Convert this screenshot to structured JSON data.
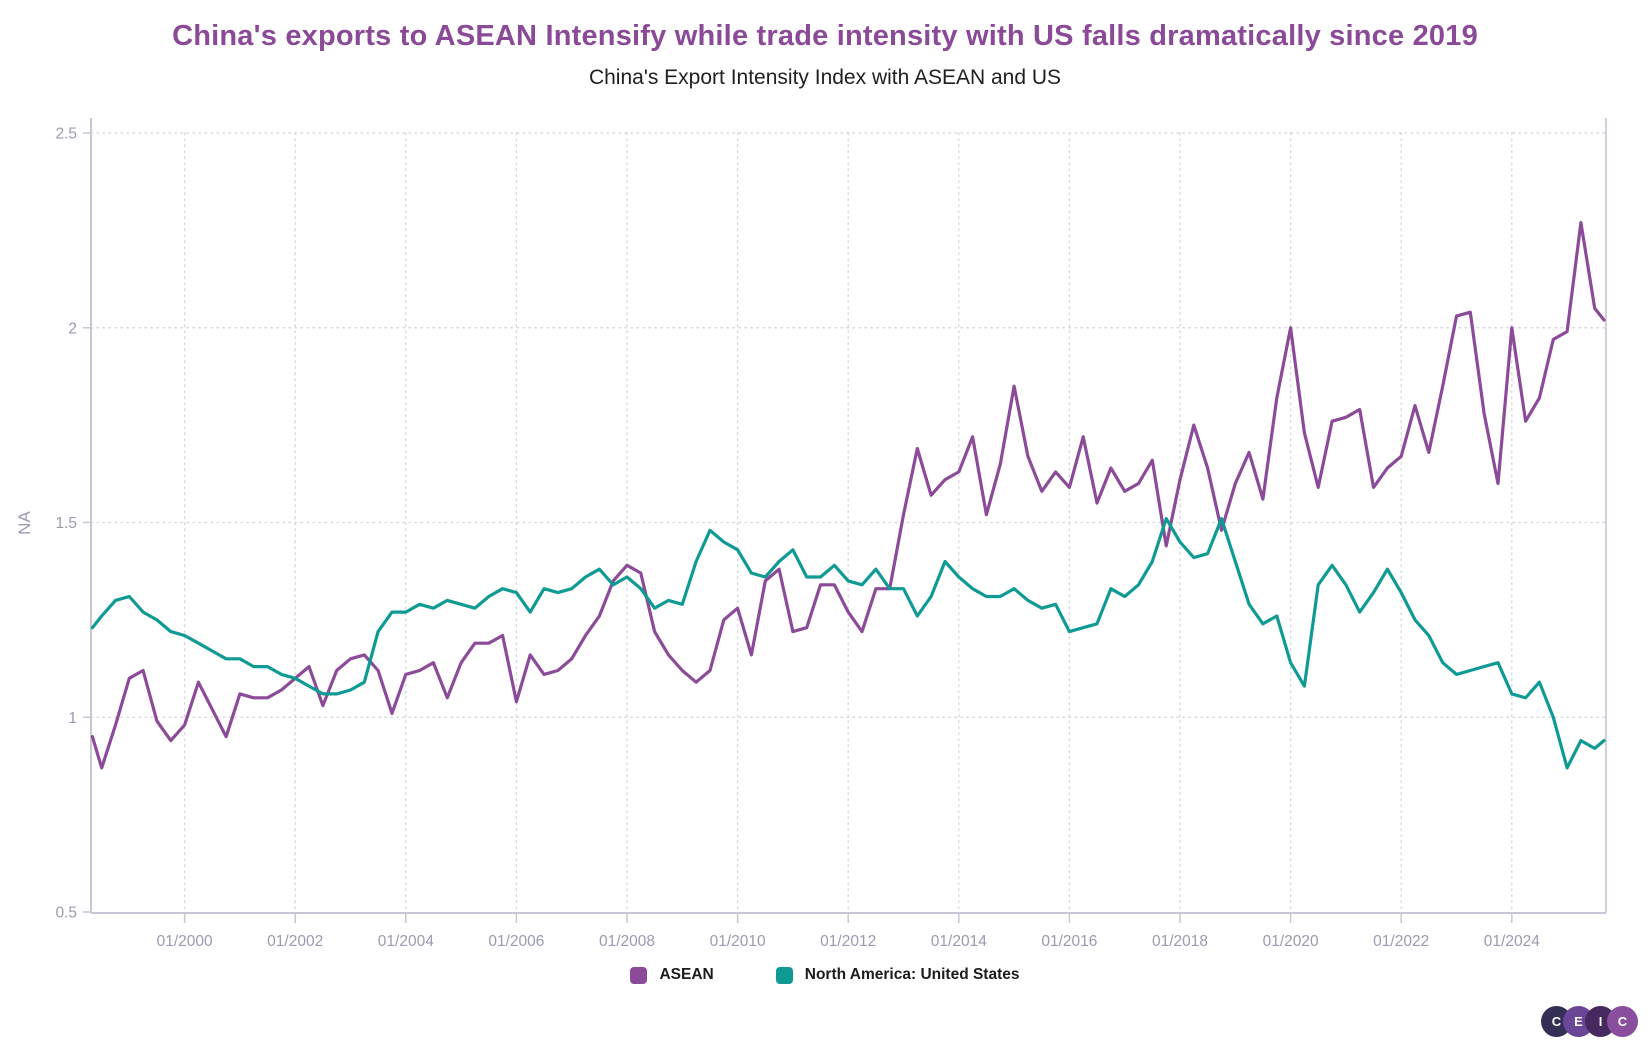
{
  "title": {
    "text": "China's exports to ASEAN Intensify while trade intensity with US falls dramatically since 2019",
    "color": "#8B4A97"
  },
  "subtitle": {
    "text": "China's Export Intensity Index with ASEAN and US"
  },
  "legend": {
    "items": [
      {
        "label": "ASEAN",
        "color": "#8C4B98"
      },
      {
        "label": "North America: United States",
        "color": "#0F9A94"
      }
    ]
  },
  "logo": {
    "letters": [
      "C",
      "E",
      "I",
      "C"
    ],
    "circle_colors": [
      "#343055",
      "#6B4596",
      "#46295F",
      "#8A4E9F"
    ]
  },
  "chart_data": {
    "type": "line",
    "title": "China's Export Intensity Index with ASEAN and US",
    "xlabel": "",
    "ylabel": "NA",
    "ylim": [
      0.5,
      2.5
    ],
    "grid": true,
    "legend_position": "bottom",
    "yticks": [
      "0.5",
      "1",
      "1.5",
      "2",
      "2.5"
    ],
    "xticks": [
      "01/2000",
      "01/2002",
      "01/2004",
      "01/2006",
      "01/2008",
      "01/2010",
      "01/2012",
      "01/2014",
      "01/2016",
      "01/2018",
      "01/2020",
      "01/2022",
      "01/2024"
    ],
    "x": [
      "1998-05",
      "1998-07",
      "1998-10",
      "1999-01",
      "1999-04",
      "1999-07",
      "1999-10",
      "2000-01",
      "2000-04",
      "2000-07",
      "2000-10",
      "2001-01",
      "2001-04",
      "2001-07",
      "2001-10",
      "2002-01",
      "2002-04",
      "2002-07",
      "2002-10",
      "2003-01",
      "2003-04",
      "2003-07",
      "2003-10",
      "2004-01",
      "2004-04",
      "2004-07",
      "2004-10",
      "2005-01",
      "2005-04",
      "2005-07",
      "2005-10",
      "2006-01",
      "2006-04",
      "2006-07",
      "2006-10",
      "2007-01",
      "2007-04",
      "2007-07",
      "2007-10",
      "2008-01",
      "2008-04",
      "2008-07",
      "2008-10",
      "2009-01",
      "2009-04",
      "2009-07",
      "2009-10",
      "2010-01",
      "2010-04",
      "2010-07",
      "2010-10",
      "2011-01",
      "2011-04",
      "2011-07",
      "2011-10",
      "2012-01",
      "2012-04",
      "2012-07",
      "2012-10",
      "2013-01",
      "2013-04",
      "2013-07",
      "2013-10",
      "2014-01",
      "2014-04",
      "2014-07",
      "2014-10",
      "2015-01",
      "2015-04",
      "2015-07",
      "2015-10",
      "2016-01",
      "2016-04",
      "2016-07",
      "2016-10",
      "2017-01",
      "2017-04",
      "2017-07",
      "2017-10",
      "2018-01",
      "2018-04",
      "2018-07",
      "2018-10",
      "2019-01",
      "2019-04",
      "2019-07",
      "2019-10",
      "2020-01",
      "2020-04",
      "2020-07",
      "2020-10",
      "2021-01",
      "2021-04",
      "2021-07",
      "2021-10",
      "2022-01",
      "2022-04",
      "2022-07",
      "2022-10",
      "2023-01",
      "2023-04",
      "2023-07",
      "2023-10",
      "2024-01",
      "2024-04",
      "2024-07",
      "2024-10",
      "2025-01",
      "2025-04",
      "2025-07",
      "2025-09"
    ],
    "series": [
      {
        "name": "ASEAN",
        "color": "#8C4B98",
        "values": [
          0.95,
          0.87,
          0.98,
          1.1,
          1.12,
          0.99,
          0.94,
          0.98,
          1.09,
          1.02,
          0.95,
          1.06,
          1.05,
          1.05,
          1.07,
          1.1,
          1.13,
          1.03,
          1.12,
          1.15,
          1.16,
          1.12,
          1.01,
          1.11,
          1.12,
          1.14,
          1.05,
          1.14,
          1.19,
          1.19,
          1.21,
          1.04,
          1.16,
          1.11,
          1.12,
          1.15,
          1.21,
          1.26,
          1.35,
          1.39,
          1.37,
          1.22,
          1.16,
          1.12,
          1.09,
          1.12,
          1.25,
          1.28,
          1.16,
          1.35,
          1.38,
          1.22,
          1.23,
          1.34,
          1.34,
          1.27,
          1.22,
          1.33,
          1.33,
          1.52,
          1.69,
          1.57,
          1.61,
          1.63,
          1.72,
          1.52,
          1.65,
          1.85,
          1.67,
          1.58,
          1.63,
          1.59,
          1.72,
          1.55,
          1.64,
          1.58,
          1.6,
          1.66,
          1.44,
          1.61,
          1.75,
          1.64,
          1.48,
          1.6,
          1.68,
          1.56,
          1.82,
          2.0,
          1.73,
          1.59,
          1.76,
          1.77,
          1.79,
          1.59,
          1.64,
          1.67,
          1.8,
          1.68,
          1.85,
          2.03,
          2.04,
          1.78,
          1.6,
          2.0,
          1.76,
          1.82,
          1.97,
          1.99,
          2.27,
          2.05,
          2.02
        ]
      },
      {
        "name": "North America: United States",
        "color": "#0F9A94",
        "values": [
          1.23,
          1.26,
          1.3,
          1.31,
          1.27,
          1.25,
          1.22,
          1.21,
          1.19,
          1.17,
          1.15,
          1.15,
          1.13,
          1.13,
          1.11,
          1.1,
          1.08,
          1.06,
          1.06,
          1.07,
          1.09,
          1.22,
          1.27,
          1.27,
          1.29,
          1.28,
          1.3,
          1.29,
          1.28,
          1.31,
          1.33,
          1.32,
          1.27,
          1.33,
          1.32,
          1.33,
          1.36,
          1.38,
          1.34,
          1.36,
          1.33,
          1.28,
          1.3,
          1.29,
          1.4,
          1.48,
          1.45,
          1.43,
          1.37,
          1.36,
          1.4,
          1.43,
          1.36,
          1.36,
          1.39,
          1.35,
          1.34,
          1.38,
          1.33,
          1.33,
          1.26,
          1.31,
          1.4,
          1.36,
          1.33,
          1.31,
          1.31,
          1.33,
          1.3,
          1.28,
          1.29,
          1.22,
          1.23,
          1.24,
          1.33,
          1.31,
          1.34,
          1.4,
          1.51,
          1.45,
          1.41,
          1.42,
          1.51,
          1.4,
          1.29,
          1.24,
          1.26,
          1.14,
          1.08,
          1.34,
          1.39,
          1.34,
          1.27,
          1.32,
          1.38,
          1.32,
          1.25,
          1.21,
          1.14,
          1.11,
          1.12,
          1.13,
          1.14,
          1.06,
          1.05,
          1.09,
          1.0,
          0.87,
          0.94,
          0.92,
          0.94
        ]
      }
    ]
  }
}
